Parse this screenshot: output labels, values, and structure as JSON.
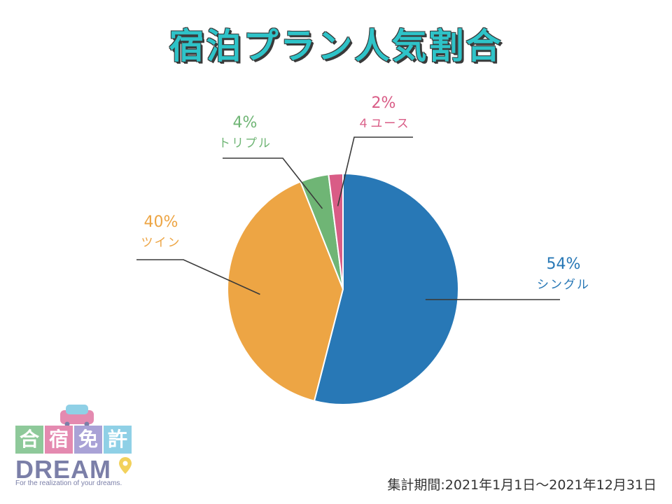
{
  "chart_data": {
    "type": "pie",
    "title": "宿泊プラン人気割合",
    "slices": [
      {
        "label": "シングル",
        "value": 54,
        "value_label": "54%",
        "color": "#2878b6"
      },
      {
        "label": "ツイン",
        "value": 40,
        "value_label": "40%",
        "color": "#eda544"
      },
      {
        "label": "トリプル",
        "value": 4,
        "value_label": "4%",
        "color": "#6fb575"
      },
      {
        "label": "４ユース",
        "value": 2,
        "value_label": "2%",
        "color": "#d95c86"
      }
    ],
    "start_angle": "12 o'clock",
    "direction": "clockwise"
  },
  "period": "集計期間:2021年1月1日〜2021年12月31日",
  "logo": {
    "chars": [
      "合",
      "宿",
      "免",
      "許"
    ],
    "char_colors": [
      "#8ec99a",
      "#e48ab0",
      "#a9a2d6",
      "#8fd0e6"
    ],
    "word": "DREAM",
    "tagline": "For the realization of your dreams."
  }
}
